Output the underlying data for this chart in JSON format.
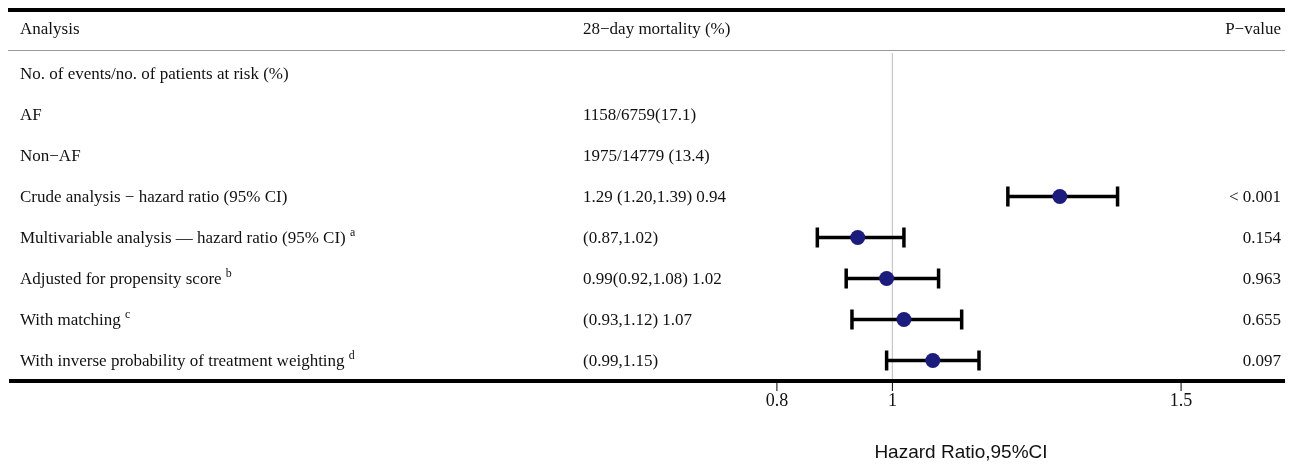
{
  "chart_data": {
    "type": "scatter",
    "xlabel": "Hazard Ratio,95%CI",
    "categories": [
      "No. of events/no. of patients at risk (%)",
      "AF",
      "Non−AF",
      "Crude analysis − hazard ratio (95% CI)",
      "Multivariable analysis — hazard ratio (95% CI) $^{a}$",
      "Adjusted for propensity score $^{b}$",
      "With matching $^{c}$",
      "With inverse probability of treatment weighting $^{d}$"
    ],
    "values": [
      null,
      null,
      null,
      1.29,
      0.94,
      0.99,
      1.02,
      1.07
    ],
    "errors": [
      null,
      null,
      null,
      [
        1.2,
        1.39
      ],
      [
        0.87,
        1.02
      ],
      [
        0.92,
        1.08
      ],
      [
        0.93,
        1.12
      ],
      [
        0.99,
        1.15
      ]
    ],
    "color": "#1c1c7c",
    "marker": "circle",
    "orientation": "horizontal",
    "xlim": [
      -0.53,
      1.68
    ],
    "xticks": [
      0.8,
      1,
      1.5
    ],
    "ref_lines": [
      {
        "axis": "x",
        "value": 1,
        "color": "#c8c8c8"
      }
    ],
    "annotations": [
      "Analysis",
      "28−day mortality (%)",
      "P−value",
      "1158/6759(17.1)",
      "1975/14779 (13.4)",
      "1.29 (1.20,1.39) 0.94",
      "< 0.001",
      "(0.87,1.02)",
      "0.154",
      "0.99(0.92,1.08) 1.02",
      "0.963",
      "(0.93,1.12) 1.07",
      "0.655",
      "(0.99,1.15)",
      "0.097"
    ]
  }
}
